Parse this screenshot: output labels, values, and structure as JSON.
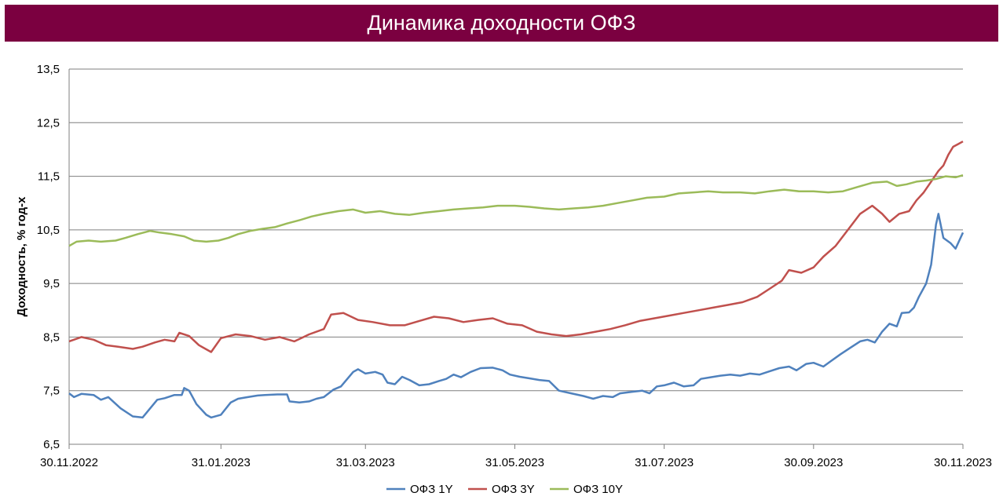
{
  "header": {
    "bg_color": "#7B0040"
  },
  "chart_data": {
    "type": "line",
    "title": "Динамика доходности ОФЗ",
    "ylabel": "Доходность, % год-х",
    "ylim": [
      6.5,
      13.5
    ],
    "yticks": [
      "6,5",
      "7,5",
      "8,5",
      "9,5",
      "10,5",
      "11,5",
      "12,5",
      "13,5"
    ],
    "xlim": [
      "2022-11-30",
      "2023-11-30"
    ],
    "xticks": [
      {
        "date": "2022-11-30",
        "label": "30.11.2022"
      },
      {
        "date": "2023-01-31",
        "label": "31.01.2023"
      },
      {
        "date": "2023-03-31",
        "label": "31.03.2023"
      },
      {
        "date": "2023-05-31",
        "label": "31.05.2023"
      },
      {
        "date": "2023-07-31",
        "label": "31.07.2023"
      },
      {
        "date": "2023-09-30",
        "label": "30.09.2023"
      },
      {
        "date": "2023-11-30",
        "label": "30.11.2023"
      }
    ],
    "grid": true,
    "legend_position": "bottom",
    "series": [
      {
        "name": "ОФЗ 1Y",
        "color": "#4F81BD",
        "points": [
          [
            "2022-11-30",
            7.45
          ],
          [
            "2022-12-02",
            7.38
          ],
          [
            "2022-12-05",
            7.44
          ],
          [
            "2022-12-10",
            7.42
          ],
          [
            "2022-12-13",
            7.33
          ],
          [
            "2022-12-16",
            7.38
          ],
          [
            "2022-12-21",
            7.17
          ],
          [
            "2022-12-26",
            7.02
          ],
          [
            "2022-12-30",
            7.0
          ],
          [
            "2023-01-05",
            7.33
          ],
          [
            "2023-01-08",
            7.36
          ],
          [
            "2023-01-12",
            7.42
          ],
          [
            "2023-01-15",
            7.42
          ],
          [
            "2023-01-16",
            7.55
          ],
          [
            "2023-01-18",
            7.5
          ],
          [
            "2023-01-21",
            7.25
          ],
          [
            "2023-01-25",
            7.05
          ],
          [
            "2023-01-27",
            7.0
          ],
          [
            "2023-01-31",
            7.05
          ],
          [
            "2023-02-04",
            7.28
          ],
          [
            "2023-02-07",
            7.35
          ],
          [
            "2023-02-11",
            7.38
          ],
          [
            "2023-02-15",
            7.41
          ],
          [
            "2023-02-18",
            7.42
          ],
          [
            "2023-02-23",
            7.43
          ],
          [
            "2023-02-27",
            7.43
          ],
          [
            "2023-02-28",
            7.3
          ],
          [
            "2023-03-04",
            7.28
          ],
          [
            "2023-03-08",
            7.3
          ],
          [
            "2023-03-11",
            7.35
          ],
          [
            "2023-03-14",
            7.38
          ],
          [
            "2023-03-18",
            7.52
          ],
          [
            "2023-03-21",
            7.58
          ],
          [
            "2023-03-26",
            7.85
          ],
          [
            "2023-03-28",
            7.9
          ],
          [
            "2023-03-31",
            7.82
          ],
          [
            "2023-04-04",
            7.85
          ],
          [
            "2023-04-07",
            7.8
          ],
          [
            "2023-04-09",
            7.65
          ],
          [
            "2023-04-12",
            7.62
          ],
          [
            "2023-04-15",
            7.76
          ],
          [
            "2023-04-18",
            7.7
          ],
          [
            "2023-04-22",
            7.6
          ],
          [
            "2023-04-26",
            7.62
          ],
          [
            "2023-04-30",
            7.68
          ],
          [
            "2023-05-03",
            7.72
          ],
          [
            "2023-05-06",
            7.8
          ],
          [
            "2023-05-09",
            7.75
          ],
          [
            "2023-05-13",
            7.85
          ],
          [
            "2023-05-17",
            7.92
          ],
          [
            "2023-05-22",
            7.93
          ],
          [
            "2023-05-26",
            7.88
          ],
          [
            "2023-05-29",
            7.8
          ],
          [
            "2023-06-02",
            7.76
          ],
          [
            "2023-06-06",
            7.73
          ],
          [
            "2023-06-10",
            7.7
          ],
          [
            "2023-06-14",
            7.68
          ],
          [
            "2023-06-18",
            7.5
          ],
          [
            "2023-06-23",
            7.45
          ],
          [
            "2023-06-28",
            7.4
          ],
          [
            "2023-07-02",
            7.35
          ],
          [
            "2023-07-06",
            7.4
          ],
          [
            "2023-07-10",
            7.38
          ],
          [
            "2023-07-13",
            7.45
          ],
          [
            "2023-07-18",
            7.48
          ],
          [
            "2023-07-22",
            7.5
          ],
          [
            "2023-07-25",
            7.45
          ],
          [
            "2023-07-28",
            7.58
          ],
          [
            "2023-07-31",
            7.6
          ],
          [
            "2023-08-04",
            7.65
          ],
          [
            "2023-08-08",
            7.58
          ],
          [
            "2023-08-12",
            7.6
          ],
          [
            "2023-08-15",
            7.72
          ],
          [
            "2023-08-19",
            7.75
          ],
          [
            "2023-08-23",
            7.78
          ],
          [
            "2023-08-27",
            7.8
          ],
          [
            "2023-08-31",
            7.78
          ],
          [
            "2023-09-04",
            7.82
          ],
          [
            "2023-09-08",
            7.8
          ],
          [
            "2023-09-12",
            7.86
          ],
          [
            "2023-09-16",
            7.92
          ],
          [
            "2023-09-20",
            7.95
          ],
          [
            "2023-09-23",
            7.88
          ],
          [
            "2023-09-27",
            8.0
          ],
          [
            "2023-09-30",
            8.02
          ],
          [
            "2023-10-04",
            7.95
          ],
          [
            "2023-10-07",
            8.05
          ],
          [
            "2023-10-11",
            8.18
          ],
          [
            "2023-10-15",
            8.3
          ],
          [
            "2023-10-19",
            8.42
          ],
          [
            "2023-10-22",
            8.45
          ],
          [
            "2023-10-25",
            8.4
          ],
          [
            "2023-10-28",
            8.6
          ],
          [
            "2023-10-31",
            8.75
          ],
          [
            "2023-11-03",
            8.7
          ],
          [
            "2023-11-05",
            8.95
          ],
          [
            "2023-11-08",
            8.96
          ],
          [
            "2023-11-10",
            9.05
          ],
          [
            "2023-11-12",
            9.25
          ],
          [
            "2023-11-15",
            9.5
          ],
          [
            "2023-11-17",
            9.85
          ],
          [
            "2023-11-19",
            10.6
          ],
          [
            "2023-11-20",
            10.8
          ],
          [
            "2023-11-22",
            10.35
          ],
          [
            "2023-11-25",
            10.25
          ],
          [
            "2023-11-27",
            10.15
          ],
          [
            "2023-11-28",
            10.25
          ],
          [
            "2023-11-30",
            10.45
          ]
        ]
      },
      {
        "name": "ОФЗ 3Y",
        "color": "#C0504D",
        "points": [
          [
            "2022-11-30",
            8.42
          ],
          [
            "2022-12-05",
            8.5
          ],
          [
            "2022-12-10",
            8.45
          ],
          [
            "2022-12-15",
            8.35
          ],
          [
            "2022-12-20",
            8.32
          ],
          [
            "2022-12-26",
            8.28
          ],
          [
            "2022-12-30",
            8.32
          ],
          [
            "2023-01-04",
            8.4
          ],
          [
            "2023-01-08",
            8.45
          ],
          [
            "2023-01-12",
            8.42
          ],
          [
            "2023-01-14",
            8.58
          ],
          [
            "2023-01-18",
            8.52
          ],
          [
            "2023-01-22",
            8.35
          ],
          [
            "2023-01-27",
            8.22
          ],
          [
            "2023-01-31",
            8.48
          ],
          [
            "2023-02-06",
            8.55
          ],
          [
            "2023-02-12",
            8.52
          ],
          [
            "2023-02-18",
            8.45
          ],
          [
            "2023-02-24",
            8.5
          ],
          [
            "2023-03-02",
            8.42
          ],
          [
            "2023-03-08",
            8.55
          ],
          [
            "2023-03-14",
            8.65
          ],
          [
            "2023-03-17",
            8.92
          ],
          [
            "2023-03-22",
            8.95
          ],
          [
            "2023-03-28",
            8.82
          ],
          [
            "2023-04-03",
            8.78
          ],
          [
            "2023-04-10",
            8.72
          ],
          [
            "2023-04-16",
            8.72
          ],
          [
            "2023-04-22",
            8.8
          ],
          [
            "2023-04-28",
            8.88
          ],
          [
            "2023-05-04",
            8.85
          ],
          [
            "2023-05-10",
            8.78
          ],
          [
            "2023-05-16",
            8.82
          ],
          [
            "2023-05-22",
            8.85
          ],
          [
            "2023-05-28",
            8.75
          ],
          [
            "2023-06-03",
            8.72
          ],
          [
            "2023-06-09",
            8.6
          ],
          [
            "2023-06-15",
            8.55
          ],
          [
            "2023-06-21",
            8.52
          ],
          [
            "2023-06-27",
            8.55
          ],
          [
            "2023-07-03",
            8.6
          ],
          [
            "2023-07-09",
            8.65
          ],
          [
            "2023-07-15",
            8.72
          ],
          [
            "2023-07-21",
            8.8
          ],
          [
            "2023-07-27",
            8.85
          ],
          [
            "2023-08-02",
            8.9
          ],
          [
            "2023-08-08",
            8.95
          ],
          [
            "2023-08-14",
            9.0
          ],
          [
            "2023-08-20",
            9.05
          ],
          [
            "2023-08-26",
            9.1
          ],
          [
            "2023-09-01",
            9.15
          ],
          [
            "2023-09-07",
            9.25
          ],
          [
            "2023-09-12",
            9.4
          ],
          [
            "2023-09-17",
            9.55
          ],
          [
            "2023-09-20",
            9.75
          ],
          [
            "2023-09-25",
            9.7
          ],
          [
            "2023-09-30",
            9.8
          ],
          [
            "2023-10-04",
            10.0
          ],
          [
            "2023-10-09",
            10.2
          ],
          [
            "2023-10-14",
            10.5
          ],
          [
            "2023-10-19",
            10.8
          ],
          [
            "2023-10-24",
            10.95
          ],
          [
            "2023-10-28",
            10.8
          ],
          [
            "2023-10-31",
            10.65
          ],
          [
            "2023-11-04",
            10.8
          ],
          [
            "2023-11-08",
            10.85
          ],
          [
            "2023-11-11",
            11.05
          ],
          [
            "2023-11-14",
            11.2
          ],
          [
            "2023-11-17",
            11.4
          ],
          [
            "2023-11-20",
            11.6
          ],
          [
            "2023-11-22",
            11.7
          ],
          [
            "2023-11-24",
            11.9
          ],
          [
            "2023-11-26",
            12.05
          ],
          [
            "2023-11-28",
            12.1
          ],
          [
            "2023-11-30",
            12.15
          ]
        ]
      },
      {
        "name": "ОФЗ 10Y",
        "color": "#9BBB59",
        "points": [
          [
            "2022-11-30",
            10.2
          ],
          [
            "2022-12-03",
            10.28
          ],
          [
            "2022-12-08",
            10.3
          ],
          [
            "2022-12-13",
            10.28
          ],
          [
            "2022-12-19",
            10.3
          ],
          [
            "2022-12-23",
            10.35
          ],
          [
            "2022-12-28",
            10.42
          ],
          [
            "2023-01-02",
            10.48
          ],
          [
            "2023-01-06",
            10.45
          ],
          [
            "2023-01-11",
            10.42
          ],
          [
            "2023-01-16",
            10.38
          ],
          [
            "2023-01-20",
            10.3
          ],
          [
            "2023-01-25",
            10.28
          ],
          [
            "2023-01-30",
            10.3
          ],
          [
            "2023-02-03",
            10.35
          ],
          [
            "2023-02-07",
            10.42
          ],
          [
            "2023-02-12",
            10.48
          ],
          [
            "2023-02-17",
            10.52
          ],
          [
            "2023-02-22",
            10.55
          ],
          [
            "2023-02-27",
            10.62
          ],
          [
            "2023-03-04",
            10.68
          ],
          [
            "2023-03-09",
            10.75
          ],
          [
            "2023-03-14",
            10.8
          ],
          [
            "2023-03-20",
            10.85
          ],
          [
            "2023-03-26",
            10.88
          ],
          [
            "2023-03-31",
            10.82
          ],
          [
            "2023-04-06",
            10.85
          ],
          [
            "2023-04-12",
            10.8
          ],
          [
            "2023-04-18",
            10.78
          ],
          [
            "2023-04-24",
            10.82
          ],
          [
            "2023-04-30",
            10.85
          ],
          [
            "2023-05-06",
            10.88
          ],
          [
            "2023-05-12",
            10.9
          ],
          [
            "2023-05-18",
            10.92
          ],
          [
            "2023-05-24",
            10.95
          ],
          [
            "2023-05-31",
            10.95
          ],
          [
            "2023-06-06",
            10.93
          ],
          [
            "2023-06-12",
            10.9
          ],
          [
            "2023-06-18",
            10.88
          ],
          [
            "2023-06-24",
            10.9
          ],
          [
            "2023-06-30",
            10.92
          ],
          [
            "2023-07-06",
            10.95
          ],
          [
            "2023-07-12",
            11.0
          ],
          [
            "2023-07-18",
            11.05
          ],
          [
            "2023-07-24",
            11.1
          ],
          [
            "2023-07-31",
            11.12
          ],
          [
            "2023-08-06",
            11.18
          ],
          [
            "2023-08-12",
            11.2
          ],
          [
            "2023-08-18",
            11.22
          ],
          [
            "2023-08-24",
            11.2
          ],
          [
            "2023-08-31",
            11.2
          ],
          [
            "2023-09-06",
            11.18
          ],
          [
            "2023-09-12",
            11.22
          ],
          [
            "2023-09-18",
            11.25
          ],
          [
            "2023-09-24",
            11.22
          ],
          [
            "2023-09-30",
            11.22
          ],
          [
            "2023-10-06",
            11.2
          ],
          [
            "2023-10-12",
            11.22
          ],
          [
            "2023-10-18",
            11.3
          ],
          [
            "2023-10-24",
            11.38
          ],
          [
            "2023-10-30",
            11.4
          ],
          [
            "2023-11-03",
            11.32
          ],
          [
            "2023-11-07",
            11.35
          ],
          [
            "2023-11-11",
            11.4
          ],
          [
            "2023-11-15",
            11.42
          ],
          [
            "2023-11-19",
            11.45
          ],
          [
            "2023-11-23",
            11.5
          ],
          [
            "2023-11-27",
            11.48
          ],
          [
            "2023-11-30",
            11.52
          ]
        ]
      }
    ]
  }
}
